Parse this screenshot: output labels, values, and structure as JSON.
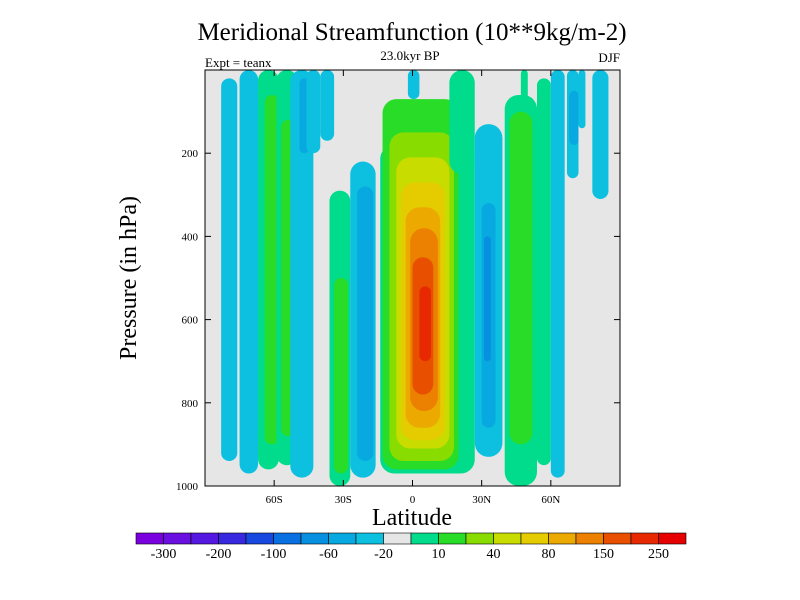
{
  "chart_data": {
    "type": "contour",
    "title": "Meridional Streamfunction (10**9kg/m-2)",
    "subtitle": "23.0kyr BP",
    "left_label": "Expt = teanx",
    "right_label": "DJF",
    "xlabel": "Latitude",
    "ylabel": "Pressure (in hPa)",
    "xlim": [
      -90,
      90
    ],
    "ylim": [
      0,
      1000
    ],
    "y_inverted": true,
    "x_ticks": [
      {
        "value": -60,
        "label": "60S"
      },
      {
        "value": -30,
        "label": "30S"
      },
      {
        "value": 0,
        "label": "0"
      },
      {
        "value": 30,
        "label": "30N"
      },
      {
        "value": 60,
        "label": "60N"
      }
    ],
    "y_ticks": [
      {
        "value": 200,
        "label": "200"
      },
      {
        "value": 400,
        "label": "400"
      },
      {
        "value": 600,
        "label": "600"
      },
      {
        "value": 800,
        "label": "800"
      },
      {
        "value": 1000,
        "label": "1000"
      }
    ],
    "colorbar": {
      "colors": [
        "#7a00e0",
        "#6a10e0",
        "#5518e0",
        "#3828e0",
        "#1848e0",
        "#0870e0",
        "#0890e0",
        "#08a8e0",
        "#0ec0e0",
        "#e6e6e6",
        "#00dc8c",
        "#28dc28",
        "#88dc00",
        "#c8dc00",
        "#e4cc00",
        "#ecaa00",
        "#ec8000",
        "#e85000",
        "#e82800",
        "#e60000"
      ],
      "labels": [
        {
          "text": "-300",
          "boundary": 1
        },
        {
          "text": "-200",
          "boundary": 3
        },
        {
          "text": "-100",
          "boundary": 5
        },
        {
          "text": "-60",
          "boundary": 7
        },
        {
          "text": "-20",
          "boundary": 9
        },
        {
          "text": "10",
          "boundary": 11
        },
        {
          "text": "40",
          "boundary": 13
        },
        {
          "text": "80",
          "boundary": 15
        },
        {
          "text": "150",
          "boundary": 17
        },
        {
          "text": "250",
          "boundary": 19
        }
      ]
    },
    "field_cells": [
      {
        "lat": [
          -83,
          -76
        ],
        "p": [
          20,
          940
        ],
        "color": "#0ec0e0"
      },
      {
        "lat": [
          -75,
          -67
        ],
        "p": [
          0,
          970
        ],
        "color": "#0ec0e0"
      },
      {
        "lat": [
          -67,
          -58
        ],
        "p": [
          0,
          960
        ],
        "color": "#00dc8c"
      },
      {
        "lat": [
          -64,
          -58
        ],
        "p": [
          60,
          900
        ],
        "color": "#28dc28"
      },
      {
        "lat": [
          -59,
          -50
        ],
        "p": [
          0,
          950
        ],
        "color": "#00dc8c"
      },
      {
        "lat": [
          -57,
          -51
        ],
        "p": [
          120,
          880
        ],
        "color": "#28dc28"
      },
      {
        "lat": [
          -53,
          -43
        ],
        "p": [
          0,
          980
        ],
        "color": "#0ec0e0"
      },
      {
        "lat": [
          -49,
          -45
        ],
        "p": [
          20,
          200
        ],
        "color": "#08a8e0"
      },
      {
        "lat": [
          -46,
          -40
        ],
        "p": [
          0,
          200
        ],
        "color": "#0ec0e0"
      },
      {
        "lat": [
          -40,
          -34
        ],
        "p": [
          0,
          170
        ],
        "color": "#0ec0e0"
      },
      {
        "lat": [
          -36,
          -27
        ],
        "p": [
          290,
          1000
        ],
        "color": "#00dc8c"
      },
      {
        "lat": [
          -34,
          -28
        ],
        "p": [
          500,
          970
        ],
        "color": "#28dc28"
      },
      {
        "lat": [
          -27,
          -16
        ],
        "p": [
          220,
          980
        ],
        "color": "#0ec0e0"
      },
      {
        "lat": [
          -24,
          -17
        ],
        "p": [
          280,
          940
        ],
        "color": "#08a8e0"
      },
      {
        "lat": [
          -14,
          27
        ],
        "p": [
          180,
          970
        ],
        "color": "#00dc8c"
      },
      {
        "lat": [
          -13,
          20
        ],
        "p": [
          70,
          960
        ],
        "color": "#28dc28"
      },
      {
        "lat": [
          -10,
          18
        ],
        "p": [
          150,
          940
        ],
        "color": "#88dc00"
      },
      {
        "lat": [
          -7,
          16
        ],
        "p": [
          210,
          910
        ],
        "color": "#c8dc00"
      },
      {
        "lat": [
          -5,
          14
        ],
        "p": [
          270,
          890
        ],
        "color": "#e4cc00"
      },
      {
        "lat": [
          -3,
          12
        ],
        "p": [
          330,
          860
        ],
        "color": "#ecaa00"
      },
      {
        "lat": [
          -1,
          11
        ],
        "p": [
          380,
          820
        ],
        "color": "#ec8000"
      },
      {
        "lat": [
          0,
          9
        ],
        "p": [
          450,
          780
        ],
        "color": "#e85000"
      },
      {
        "lat": [
          3,
          8
        ],
        "p": [
          520,
          700
        ],
        "color": "#e82800"
      },
      {
        "lat": [
          -2,
          3
        ],
        "p": [
          0,
          70
        ],
        "color": "#0ec0e0"
      },
      {
        "lat": [
          16,
          27
        ],
        "p": [
          0,
          250
        ],
        "color": "#00dc8c"
      },
      {
        "lat": [
          27,
          39
        ],
        "p": [
          130,
          930
        ],
        "color": "#0ec0e0"
      },
      {
        "lat": [
          30,
          36
        ],
        "p": [
          320,
          860
        ],
        "color": "#08a8e0"
      },
      {
        "lat": [
          31,
          34
        ],
        "p": [
          400,
          700
        ],
        "color": "#0890e0"
      },
      {
        "lat": [
          40,
          54
        ],
        "p": [
          60,
          1000
        ],
        "color": "#00dc8c"
      },
      {
        "lat": [
          42,
          52
        ],
        "p": [
          100,
          900
        ],
        "color": "#28dc28"
      },
      {
        "lat": [
          47,
          50
        ],
        "p": [
          0,
          70
        ],
        "color": "#00dc8c"
      },
      {
        "lat": [
          54,
          60
        ],
        "p": [
          20,
          950
        ],
        "color": "#00dc8c"
      },
      {
        "lat": [
          60,
          66
        ],
        "p": [
          0,
          980
        ],
        "color": "#0ec0e0"
      },
      {
        "lat": [
          67,
          72
        ],
        "p": [
          0,
          260
        ],
        "color": "#0ec0e0"
      },
      {
        "lat": [
          68,
          72
        ],
        "p": [
          50,
          180
        ],
        "color": "#08a8e0"
      },
      {
        "lat": [
          72,
          75
        ],
        "p": [
          0,
          140
        ],
        "color": "#0ec0e0"
      },
      {
        "lat": [
          78,
          85
        ],
        "p": [
          0,
          310
        ],
        "color": "#0ec0e0"
      }
    ]
  }
}
